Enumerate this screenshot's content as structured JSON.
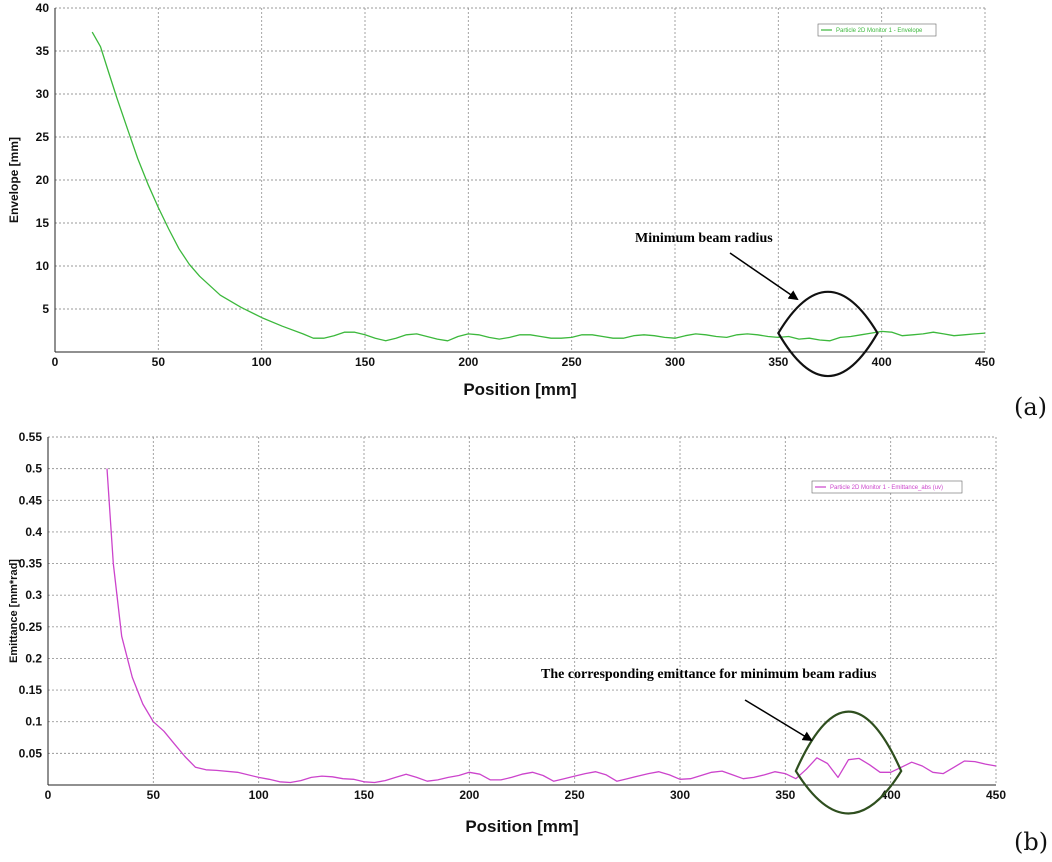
{
  "chart_data": [
    {
      "type": "line",
      "panel_label": "(a)",
      "xlabel": "Position [mm]",
      "ylabel": "Envelope [mm]",
      "xlim": [
        0,
        450
      ],
      "ylim": [
        0,
        40
      ],
      "xticks": [
        0,
        50,
        100,
        150,
        200,
        250,
        300,
        350,
        400,
        450
      ],
      "yticks": [
        5,
        10,
        15,
        20,
        25,
        30,
        35,
        40
      ],
      "grid": true,
      "legend_position": "top-right",
      "annotation": "Minimum beam radius",
      "series": [
        {
          "name": "Particle 2D Monitor 1 - Envelope",
          "color": "#3cb83c",
          "x": [
            18,
            22,
            26,
            30,
            35,
            40,
            45,
            50,
            55,
            60,
            65,
            70,
            80,
            90,
            100,
            110,
            120,
            125,
            130,
            135,
            140,
            145,
            150,
            155,
            160,
            165,
            170,
            175,
            180,
            185,
            190,
            195,
            200,
            205,
            210,
            215,
            220,
            225,
            230,
            235,
            240,
            245,
            250,
            255,
            260,
            265,
            270,
            275,
            280,
            285,
            290,
            295,
            300,
            305,
            310,
            315,
            320,
            325,
            330,
            335,
            340,
            345,
            350,
            355,
            360,
            365,
            370,
            375,
            380,
            385,
            390,
            395,
            400,
            405,
            410,
            415,
            420,
            425,
            430,
            435,
            440,
            445,
            450
          ],
          "y": [
            37.2,
            35.5,
            32.5,
            29.5,
            26.0,
            22.5,
            19.5,
            16.8,
            14.3,
            12.0,
            10.2,
            8.8,
            6.6,
            5.2,
            4.0,
            3.0,
            2.1,
            1.6,
            1.6,
            1.9,
            2.3,
            2.3,
            2.0,
            1.6,
            1.3,
            1.6,
            2.0,
            2.1,
            1.8,
            1.5,
            1.3,
            1.8,
            2.1,
            2.0,
            1.7,
            1.5,
            1.7,
            2.0,
            2.0,
            1.8,
            1.6,
            1.6,
            1.7,
            2.0,
            2.0,
            1.8,
            1.6,
            1.6,
            1.9,
            2.0,
            1.9,
            1.7,
            1.6,
            1.9,
            2.1,
            2.0,
            1.8,
            1.7,
            2.0,
            2.1,
            2.0,
            1.8,
            1.7,
            1.8,
            1.5,
            1.6,
            1.4,
            1.3,
            1.7,
            1.8,
            2.0,
            2.2,
            2.4,
            2.3,
            1.9,
            2.0,
            2.1,
            2.3,
            2.1,
            1.9,
            2.0,
            2.1,
            2.2
          ]
        }
      ]
    },
    {
      "type": "line",
      "panel_label": "(b)",
      "xlabel": "Position [mm]",
      "ylabel": "Emittance [mm*rad]",
      "xlim": [
        0,
        450
      ],
      "ylim": [
        0,
        0.55
      ],
      "xticks": [
        0,
        50,
        100,
        150,
        200,
        250,
        300,
        350,
        400,
        450
      ],
      "yticks": [
        0.05,
        0.1,
        0.15,
        0.2,
        0.25,
        0.3,
        0.35,
        0.4,
        0.45,
        0.5,
        0.55
      ],
      "grid": true,
      "legend_position": "top-right",
      "annotation": "The corresponding emittance for minimum beam radius",
      "series": [
        {
          "name": "Particle 2D Monitor 1 - Emittance_abs (uv)",
          "color": "#cc44cc",
          "x": [
            28,
            31,
            35,
            40,
            45,
            50,
            55,
            60,
            65,
            70,
            75,
            80,
            90,
            100,
            105,
            110,
            115,
            120,
            125,
            130,
            135,
            140,
            145,
            150,
            155,
            160,
            165,
            170,
            175,
            180,
            185,
            190,
            195,
            200,
            205,
            210,
            215,
            220,
            225,
            230,
            235,
            240,
            245,
            250,
            255,
            260,
            265,
            270,
            275,
            280,
            285,
            290,
            295,
            300,
            305,
            310,
            315,
            320,
            325,
            330,
            335,
            340,
            345,
            350,
            355,
            360,
            365,
            370,
            375,
            380,
            385,
            390,
            395,
            400,
            405,
            410,
            415,
            420,
            425,
            430,
            435,
            440,
            445,
            450
          ],
          "y": [
            0.5,
            0.35,
            0.235,
            0.17,
            0.128,
            0.1,
            0.085,
            0.065,
            0.045,
            0.028,
            0.024,
            0.023,
            0.02,
            0.012,
            0.009,
            0.005,
            0.004,
            0.007,
            0.012,
            0.014,
            0.013,
            0.01,
            0.009,
            0.005,
            0.004,
            0.007,
            0.012,
            0.017,
            0.012,
            0.006,
            0.008,
            0.012,
            0.015,
            0.02,
            0.017,
            0.008,
            0.008,
            0.012,
            0.017,
            0.02,
            0.015,
            0.006,
            0.01,
            0.014,
            0.018,
            0.021,
            0.016,
            0.006,
            0.01,
            0.014,
            0.018,
            0.021,
            0.016,
            0.009,
            0.01,
            0.015,
            0.02,
            0.022,
            0.016,
            0.01,
            0.012,
            0.016,
            0.021,
            0.018,
            0.01,
            0.025,
            0.043,
            0.034,
            0.012,
            0.04,
            0.042,
            0.032,
            0.02,
            0.02,
            0.028,
            0.036,
            0.03,
            0.02,
            0.018,
            0.028,
            0.038,
            0.037,
            0.033,
            0.03
          ]
        }
      ]
    }
  ]
}
